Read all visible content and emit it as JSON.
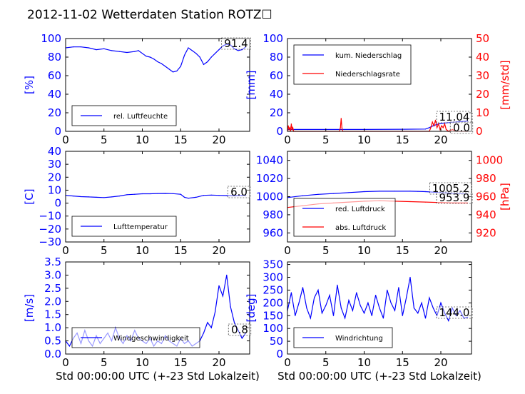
{
  "title": "2012-11-02 Wetterdaten Station ROTZ☐",
  "colors": {
    "primary": "#0000ff",
    "secondary": "#ff0000",
    "axes": "#000000",
    "noise": "#7f7fff"
  },
  "chart_data": [
    {
      "type": "line",
      "id": "humidity",
      "ylabel": "[%]",
      "xlim": [
        0,
        24
      ],
      "ylim": [
        0,
        100
      ],
      "xticks": [
        0,
        5,
        10,
        15,
        20
      ],
      "yticks": [
        0,
        20,
        40,
        60,
        80,
        100
      ],
      "legend": {
        "placement": "lower-left",
        "entries": [
          "rel. Luftfeuchte"
        ]
      },
      "annotations": [
        "91.4"
      ],
      "series": [
        {
          "name": "rel. Luftfeuchte",
          "color": "#0000ff",
          "x": [
            0,
            1,
            2,
            3,
            4,
            5,
            6,
            7,
            8,
            9,
            9.5,
            10,
            10.5,
            11,
            11.5,
            12,
            12.5,
            13,
            13.5,
            14,
            14.5,
            15,
            15.5,
            16,
            16.5,
            17,
            17.5,
            18,
            18.5,
            19,
            19.5,
            20,
            20.5,
            21,
            21.5,
            22,
            22.5,
            23,
            23.5
          ],
          "y": [
            90,
            91,
            91,
            90,
            88,
            89,
            87,
            86,
            85,
            86,
            87,
            84,
            81,
            80,
            78,
            75,
            73,
            70,
            67,
            64,
            65,
            70,
            82,
            90,
            87,
            84,
            80,
            72,
            75,
            80,
            84,
            88,
            92,
            94,
            93,
            89,
            87,
            88,
            91
          ]
        }
      ]
    },
    {
      "type": "line",
      "id": "precipitation",
      "ylabel": "[mm]",
      "ylabel2": "[mm/std]",
      "xlim": [
        0,
        24
      ],
      "ylim": [
        0,
        100
      ],
      "ylim2": [
        0,
        50
      ],
      "xticks": [
        0,
        5,
        10,
        15,
        20
      ],
      "yticks": [
        0,
        20,
        40,
        60,
        80,
        100
      ],
      "yticks2": [
        0,
        10,
        20,
        30,
        40,
        50
      ],
      "legend": {
        "placement": "top-left",
        "entries": [
          "kum. Niederschlag",
          "Niederschlagsrate"
        ]
      },
      "annotations": [
        "11.04",
        "0.0"
      ],
      "series": [
        {
          "name": "kum. Niederschlag",
          "color": "#0000ff",
          "axis": "left",
          "x": [
            0,
            5,
            10,
            15,
            18,
            18.5,
            19,
            19.5,
            20,
            21,
            22,
            23,
            23.5
          ],
          "y": [
            2,
            2,
            2,
            2.2,
            2.5,
            4,
            6,
            7.5,
            8.5,
            9.5,
            10,
            10.8,
            11
          ]
        },
        {
          "name": "Niederschlagsrate",
          "color": "#ff0000",
          "axis": "right",
          "x": [
            0,
            0.1,
            0.2,
            0.3,
            0.4,
            0.5,
            0.6,
            0.7,
            0.8,
            1.0,
            6.8,
            6.9,
            7.0,
            7.1,
            7.2,
            18.5,
            18.7,
            18.9,
            19.1,
            19.3,
            19.5,
            19.7,
            19.9,
            20.1,
            20.3,
            20.5,
            20.7,
            21.0,
            21.5,
            22.0,
            23.0,
            23.5
          ],
          "y": [
            0,
            3,
            1,
            2,
            0,
            4,
            1,
            2,
            0,
            0,
            0,
            2,
            7,
            2,
            0,
            0,
            2,
            5,
            3,
            6,
            2,
            4,
            1,
            3,
            2,
            4,
            1,
            0,
            1,
            0,
            0,
            0
          ]
        }
      ]
    },
    {
      "type": "line",
      "id": "temperature",
      "ylabel": "[C]",
      "xlim": [
        0,
        24
      ],
      "ylim": [
        -30,
        40
      ],
      "xticks": [
        0,
        5,
        10,
        15,
        20
      ],
      "yticks": [
        -30,
        -20,
        -10,
        0,
        10,
        20,
        30,
        40
      ],
      "legend": {
        "placement": "lower-left",
        "entries": [
          "Lufttemperatur"
        ]
      },
      "annotations": [
        "6.0"
      ],
      "series": [
        {
          "name": "Lufttemperatur",
          "color": "#0000ff",
          "x": [
            0,
            1,
            2,
            3,
            4,
            5,
            6,
            7,
            8,
            9,
            10,
            11,
            12,
            13,
            14,
            15,
            15.5,
            16,
            17,
            18,
            19,
            20,
            21,
            22,
            23,
            23.5
          ],
          "y": [
            6,
            5.5,
            5,
            4.8,
            4.5,
            4.3,
            4.8,
            5.5,
            6.5,
            6.8,
            7.2,
            7.2,
            7.4,
            7.5,
            7.3,
            6.8,
            4.5,
            3.8,
            4.5,
            6,
            6.2,
            6,
            5.8,
            5.7,
            6,
            6
          ]
        }
      ]
    },
    {
      "type": "line",
      "id": "pressure",
      "ylabel2": "[hPa]",
      "xlim": [
        0,
        24
      ],
      "ylim": [
        950,
        1050
      ],
      "ylim2": [
        910,
        1010
      ],
      "xticks": [
        0,
        5,
        10,
        15,
        20
      ],
      "yticks": [
        960,
        980,
        1000,
        1020,
        1040
      ],
      "yticks2": [
        920,
        940,
        960,
        980,
        1000
      ],
      "legend": {
        "placement": "lower-left",
        "entries": [
          "red. Luftdruck",
          "abs. Luftdruck"
        ]
      },
      "annotations": [
        "1005.2",
        "953.9"
      ],
      "series": [
        {
          "name": "red. Luftdruck",
          "color": "#0000ff",
          "axis": "left",
          "x": [
            0,
            2,
            4,
            6,
            8,
            10,
            12,
            14,
            16,
            17,
            18,
            20,
            22,
            23.5
          ],
          "y": [
            999,
            1001,
            1002.5,
            1003.5,
            1004.5,
            1005.5,
            1006,
            1006,
            1006,
            1005.8,
            1005.5,
            1004.5,
            1003.5,
            1003
          ]
        },
        {
          "name": "abs. Luftdruck",
          "color": "#ff0000",
          "axis": "right",
          "x": [
            0,
            2,
            4,
            6,
            8,
            10,
            12,
            14,
            16,
            18,
            20,
            22,
            23.5
          ],
          "y": [
            948,
            950,
            952,
            953,
            954,
            955,
            955.5,
            955,
            954.5,
            954,
            953.5,
            953,
            953
          ]
        }
      ]
    },
    {
      "type": "line",
      "id": "windspeed",
      "ylabel": "[m/s]",
      "xlabel": "Std 00:00:00 UTC (+-23 Std Lokalzeit)",
      "xlim": [
        0,
        24
      ],
      "ylim": [
        0,
        3.5
      ],
      "xticks": [
        0,
        5,
        10,
        15,
        20
      ],
      "yticks": [
        0.0,
        0.5,
        1.0,
        1.5,
        2.0,
        2.5,
        3.0,
        3.5
      ],
      "legend": {
        "placement": "lower-left",
        "entries": [
          "Windgeschwindigkeit"
        ]
      },
      "annotations": [
        "0.8"
      ],
      "series": [
        {
          "name": "Windgeschwindigkeit",
          "color": "#0000ff",
          "x": [
            0,
            0.5,
            1,
            1.5,
            2,
            2.5,
            3,
            3.5,
            4,
            4.5,
            5,
            5.5,
            6,
            6.5,
            7,
            7.5,
            8,
            8.5,
            9,
            9.5,
            10,
            10.5,
            11,
            11.5,
            12,
            12.5,
            13,
            13.5,
            14,
            14.5,
            15,
            15.5,
            16,
            16.5,
            17,
            17.5,
            18,
            18.5,
            19,
            19.5,
            20,
            20.5,
            21,
            21.5,
            22,
            22.5,
            23,
            23.5
          ],
          "y": [
            0.5,
            0.3,
            0.6,
            0.8,
            0.4,
            0.9,
            0.5,
            0.3,
            0.7,
            0.4,
            0.6,
            0.8,
            0.5,
            1.0,
            0.6,
            0.4,
            0.7,
            0.5,
            0.9,
            0.6,
            0.5,
            0.4,
            0.6,
            0.3,
            0.5,
            0.4,
            0.7,
            0.5,
            0.4,
            0.3,
            0.6,
            0.4,
            0.5,
            0.3,
            0.4,
            0.5,
            0.8,
            1.2,
            1.0,
            1.6,
            2.6,
            2.2,
            3.0,
            1.8,
            1.2,
            0.9,
            0.6,
            0.8
          ]
        }
      ]
    },
    {
      "type": "line",
      "id": "winddirection",
      "ylabel": "[deg]",
      "xlabel": "Std 00:00:00 UTC (+-23 Std Lokalzeit)",
      "xlim": [
        0,
        24
      ],
      "ylim": [
        0,
        360
      ],
      "xticks": [
        0,
        5,
        10,
        15,
        20
      ],
      "yticks": [
        0,
        50,
        100,
        150,
        200,
        250,
        300,
        350
      ],
      "legend": {
        "placement": "lower-left",
        "entries": [
          "Windrichtung"
        ]
      },
      "annotations": [
        "144.0"
      ],
      "series": [
        {
          "name": "Windrichtung",
          "color": "#0000ff",
          "x": [
            0,
            0.5,
            1,
            1.5,
            2,
            2.5,
            3,
            3.5,
            4,
            4.5,
            5,
            5.5,
            6,
            6.5,
            7,
            7.5,
            8,
            8.5,
            9,
            9.5,
            10,
            10.5,
            11,
            11.5,
            12,
            12.5,
            13,
            13.5,
            14,
            14.5,
            15,
            15.5,
            16,
            16.5,
            17,
            17.5,
            18,
            18.5,
            19,
            19.5,
            20,
            20.5,
            21,
            21.5,
            22,
            22.5,
            23,
            23.5
          ],
          "y": [
            170,
            240,
            150,
            200,
            260,
            180,
            140,
            220,
            250,
            160,
            190,
            230,
            150,
            270,
            180,
            140,
            210,
            170,
            240,
            190,
            160,
            200,
            150,
            230,
            180,
            140,
            250,
            200,
            170,
            260,
            150,
            220,
            300,
            180,
            160,
            200,
            140,
            220,
            180,
            150,
            200,
            160,
            130,
            180,
            150,
            170,
            140,
            144
          ]
        }
      ]
    }
  ]
}
